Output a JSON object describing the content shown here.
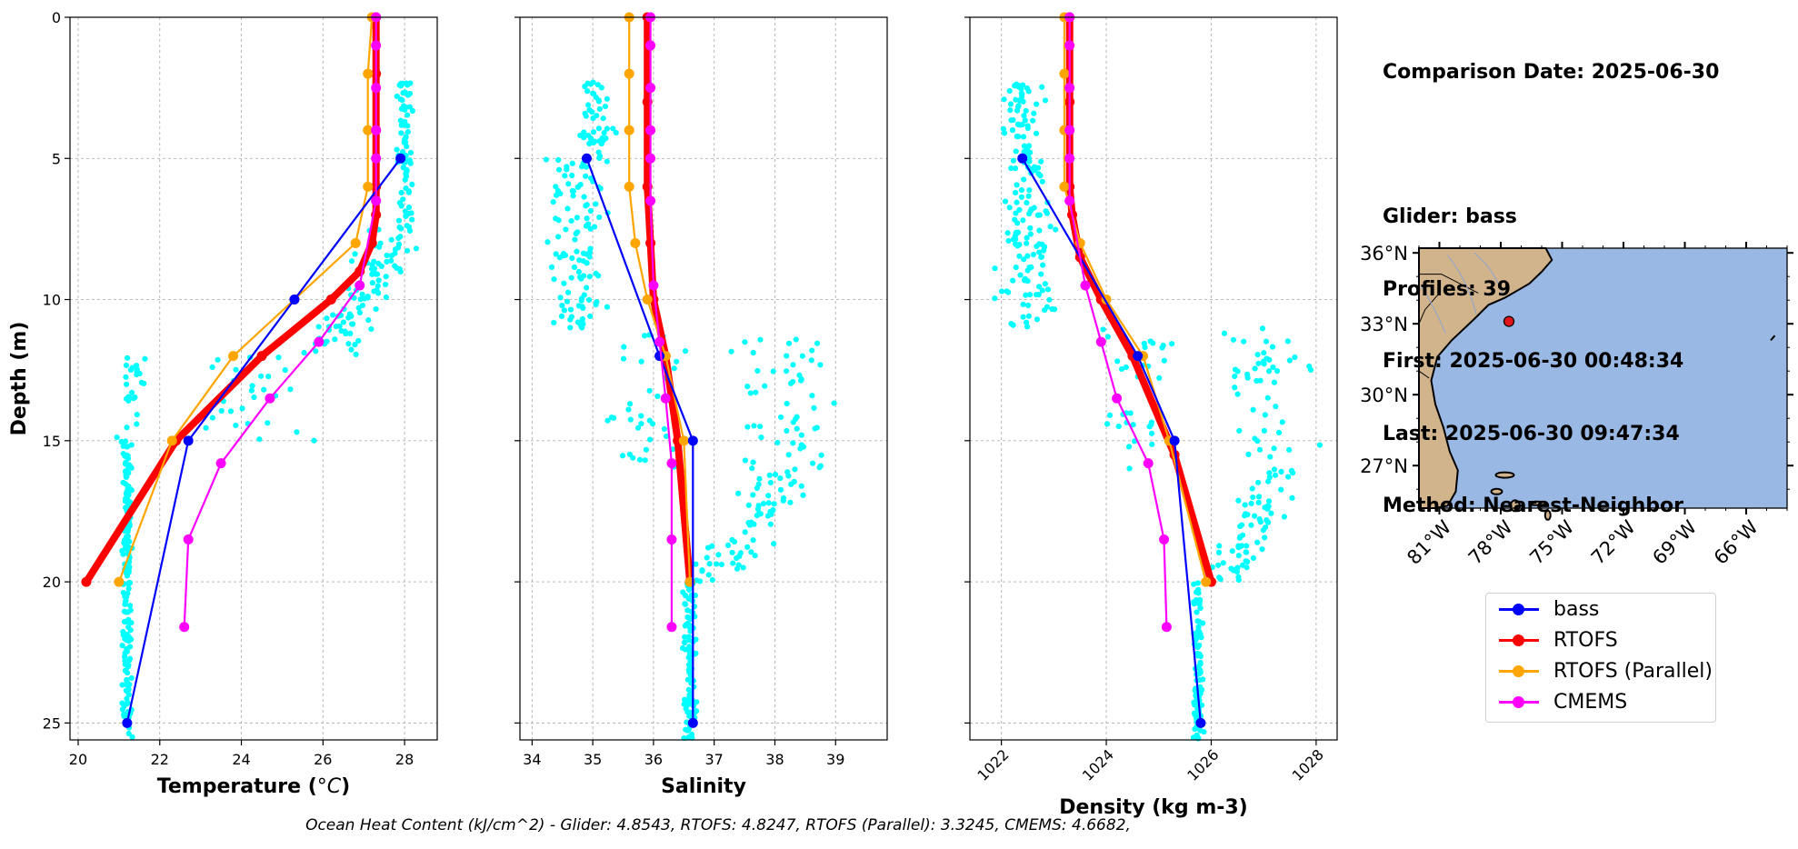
{
  "info": {
    "comparison_date": "Comparison Date: 2025-06-30",
    "glider": "Glider: bass",
    "profiles": "Profiles: 39",
    "first": "First: 2025-06-30 00:48:34",
    "last": "Last: 2025-06-30 09:47:34",
    "method": "Method: Nearest-Neighbor"
  },
  "footer": "Ocean Heat Content (kJ/cm^2) - Glider: 4.8543,  RTOFS: 4.8247,  RTOFS (Parallel): 3.3245,  CMEMS: 4.6682,",
  "legend": [
    {
      "name": "bass",
      "color": "#0000ff"
    },
    {
      "name": "RTOFS",
      "color": "#ff0000"
    },
    {
      "name": "RTOFS (Parallel)",
      "color": "#ffa500"
    },
    {
      "name": "CMEMS",
      "color": "#ff00ff"
    }
  ],
  "colors": {
    "glider_raw": "#00ffff",
    "land": "#d2b48c",
    "ocean": "#9ab8e4",
    "site": "#e0141b"
  },
  "chart_data": [
    {
      "type": "line",
      "panel": "temperature",
      "xlabel_main": "Temperature (",
      "xlabel_unit": "°C",
      "xlabel_end": ")",
      "ylabel": "Depth (m)",
      "xlim": [
        19.8,
        28.8
      ],
      "ylim": [
        25.6,
        0
      ],
      "xticks": [
        20,
        22,
        24,
        26,
        28
      ],
      "yticks": [
        0,
        5,
        10,
        15,
        20,
        25
      ],
      "grid": true,
      "series": [
        {
          "name": "bass",
          "x": [
            27.9,
            25.3,
            22.7,
            21.2
          ],
          "y": [
            5,
            10,
            15,
            25
          ]
        },
        {
          "name": "RTOFS",
          "x": [
            27.3,
            27.3,
            27.3,
            27.3,
            27.3,
            27.2,
            26.9,
            26.2,
            24.5,
            22.4,
            20.2
          ],
          "y": [
            0,
            2,
            4,
            6,
            7,
            8,
            9,
            10,
            12,
            15,
            20
          ]
        },
        {
          "name": "RTOFS (Parallel)",
          "x": [
            27.2,
            27.1,
            27.1,
            27.1,
            26.8,
            25.3,
            23.8,
            22.3,
            21.0
          ],
          "y": [
            0,
            2,
            4,
            6,
            8,
            10,
            12,
            15,
            20
          ]
        },
        {
          "name": "CMEMS",
          "x": [
            27.3,
            27.3,
            27.3,
            27.3,
            27.3,
            27.3,
            26.9,
            25.9,
            24.7,
            23.5,
            22.7,
            22.6
          ],
          "y": [
            0,
            1,
            2.5,
            4,
            5,
            6.5,
            9.5,
            11.5,
            13.5,
            15.8,
            18.5,
            21.6
          ]
        }
      ]
    },
    {
      "type": "line",
      "panel": "salinity",
      "xlabel": "Salinity",
      "xlim": [
        33.8,
        39.85
      ],
      "ylim": [
        25.6,
        0
      ],
      "xticks": [
        34,
        35,
        36,
        37,
        38,
        39
      ],
      "yticks": [
        0,
        5,
        10,
        15,
        20,
        25
      ],
      "grid": true,
      "series": [
        {
          "name": "bass",
          "x": [
            34.9,
            36.1,
            36.65,
            36.65
          ],
          "y": [
            5,
            12,
            15,
            25
          ]
        },
        {
          "name": "RTOFS",
          "x": [
            35.9,
            35.9,
            35.9,
            35.95,
            36.0,
            36.2,
            36.4,
            36.6
          ],
          "y": [
            0,
            3,
            6,
            8,
            10,
            12,
            15,
            20
          ]
        },
        {
          "name": "RTOFS (Parallel)",
          "x": [
            35.6,
            35.6,
            35.6,
            35.6,
            35.7,
            35.9,
            36.2,
            36.5,
            36.6
          ],
          "y": [
            0,
            2,
            4,
            6,
            8,
            10,
            12,
            15,
            20
          ]
        },
        {
          "name": "CMEMS",
          "x": [
            35.95,
            35.95,
            35.95,
            35.95,
            35.95,
            35.95,
            36.0,
            36.1,
            36.2,
            36.3,
            36.3,
            36.3
          ],
          "y": [
            0,
            1,
            2.5,
            4,
            5,
            6.5,
            9.5,
            11.5,
            13.5,
            15.8,
            18.5,
            21.6
          ]
        }
      ]
    },
    {
      "type": "line",
      "panel": "density",
      "xlabel": "Density (kg m-3)",
      "xlim": [
        1021.4,
        1028.4
      ],
      "ylim": [
        25.6,
        0
      ],
      "xticks": [
        1022,
        1024,
        1026,
        1028
      ],
      "yticks": [
        0,
        5,
        10,
        15,
        20,
        25
      ],
      "grid": true,
      "series": [
        {
          "name": "bass",
          "x": [
            1022.4,
            1024.6,
            1025.3,
            1025.8
          ],
          "y": [
            5,
            12,
            15,
            25
          ]
        },
        {
          "name": "RTOFS",
          "x": [
            1023.3,
            1023.3,
            1023.3,
            1023.35,
            1023.5,
            1023.9,
            1024.5,
            1025.3,
            1026.0
          ],
          "y": [
            0,
            3,
            6,
            7,
            8.5,
            10,
            12,
            15.5,
            20
          ]
        },
        {
          "name": "RTOFS (Parallel)",
          "x": [
            1023.2,
            1023.2,
            1023.2,
            1023.2,
            1023.5,
            1024.0,
            1024.7,
            1025.2,
            1025.9
          ],
          "y": [
            0,
            2,
            4,
            6,
            8,
            10,
            12,
            15,
            20
          ]
        },
        {
          "name": "CMEMS",
          "x": [
            1023.3,
            1023.3,
            1023.3,
            1023.3,
            1023.3,
            1023.3,
            1023.6,
            1023.9,
            1024.2,
            1024.8,
            1025.1,
            1025.15
          ],
          "y": [
            0,
            1,
            2.5,
            4,
            5,
            6.5,
            9.5,
            11.5,
            13.5,
            15.8,
            18.5,
            21.6
          ]
        }
      ]
    }
  ],
  "map": {
    "lat_ticks": [
      "36°N",
      "33°N",
      "30°N",
      "27°N"
    ],
    "lon_ticks": [
      "81°W",
      "78°W",
      "75°W",
      "72°W",
      "69°W",
      "66°W"
    ],
    "lat_values": [
      36,
      33,
      30,
      27
    ],
    "lon_values": [
      -81,
      -78,
      -75,
      -72,
      -69,
      -66
    ],
    "lon_range": [
      -82,
      -64
    ],
    "lat_range": [
      25.2,
      36.2
    ],
    "site": {
      "lon": -77.6,
      "lat": 33.1
    }
  }
}
